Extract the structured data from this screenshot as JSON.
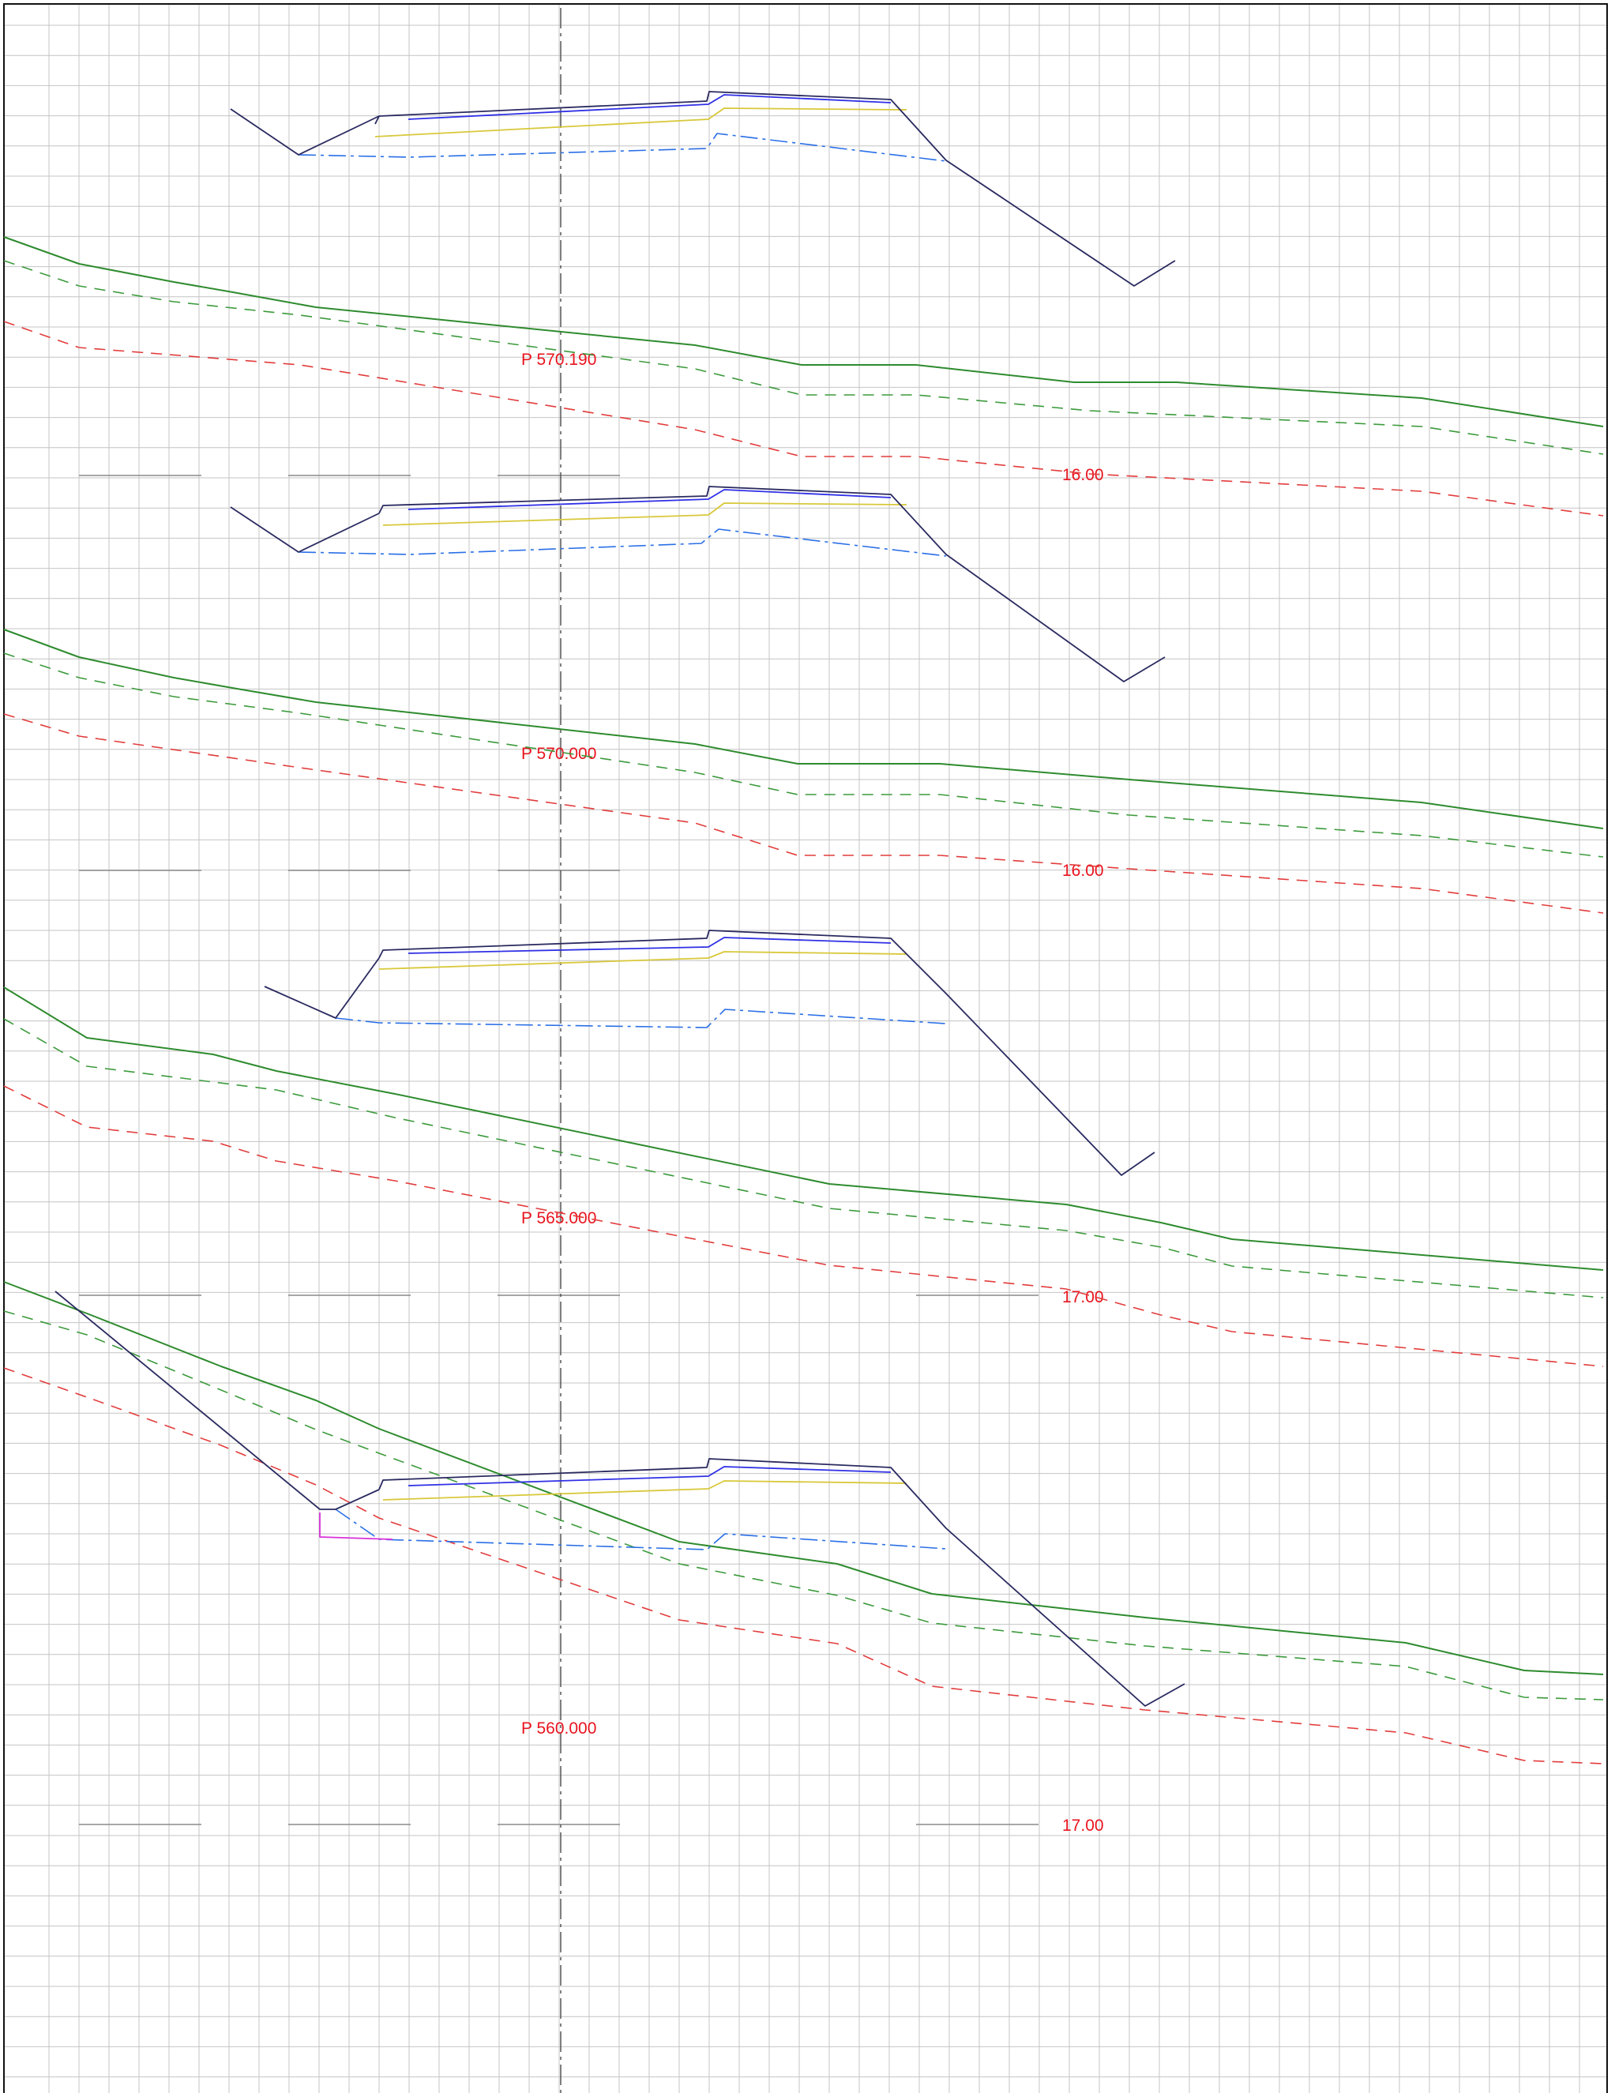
{
  "drawing": {
    "title": "",
    "sections": [
      {
        "station_label": "P 570.190",
        "width_label": "16.00",
        "design": {
          "top_layer": [
            [
              475,
              -445
            ],
            [
              480,
              -455
            ],
            [
              895,
              -474
            ],
            [
              898,
              -486
            ],
            [
              1128,
              -476
            ],
            [
              1198,
              -399
            ],
            [
              1436,
              -240
            ],
            [
              1488,
              -272
            ]
          ],
          "left_ditch": [
            [
              292,
              -464
            ],
            [
              378,
              -406
            ],
            [
              480,
              -455
            ]
          ],
          "blue_layer": [
            [
              517,
              -451
            ],
            [
              897,
              -470
            ],
            [
              917,
              -482
            ],
            [
              1128,
              -472
            ]
          ],
          "yellow_layer": [
            [
              475,
              -429
            ],
            [
              897,
              -451
            ],
            [
              917,
              -465
            ],
            [
              1148,
              -463
            ]
          ],
          "subgrade": [
            [
              378,
              -406
            ],
            [
              518,
              -403
            ],
            [
              895,
              -414
            ],
            [
              908,
              -433
            ],
            [
              1198,
              -398
            ]
          ]
        },
        "terrain": {
          "ground": [
            [
              5,
              -302
            ],
            [
              100,
              -268
            ],
            [
              220,
              -245
            ],
            [
              295,
              -232
            ],
            [
              400,
              -213
            ],
            [
              880,
              -165
            ],
            [
              1015,
              -140
            ],
            [
              1160,
              -140
            ],
            [
              1360,
              -118
            ],
            [
              1490,
              -118
            ],
            [
              1800,
              -98
            ],
            [
              2030,
              -62
            ]
          ],
          "layer_1": [
            [
              5,
              -272
            ],
            [
              100,
              -240
            ],
            [
              220,
              -220
            ],
            [
              380,
              -203
            ],
            [
              880,
              -135
            ],
            [
              1015,
              -102
            ],
            [
              1160,
              -102
            ],
            [
              1380,
              -82
            ],
            [
              1800,
              -62
            ],
            [
              2030,
              -27
            ]
          ],
          "layer_2": [
            [
              5,
              -195
            ],
            [
              100,
              -162
            ],
            [
              380,
              -140
            ],
            [
              880,
              -58
            ],
            [
              1015,
              -24
            ],
            [
              1160,
              -24
            ],
            [
              1380,
              -2
            ],
            [
              1800,
              20
            ],
            [
              2030,
              51
            ]
          ]
        }
      },
      {
        "station_label": "P 570.000",
        "width_label": "16.00",
        "design": {
          "top_layer": [
            [
              480,
              -452
            ],
            [
              485,
              -462
            ],
            [
              895,
              -474
            ],
            [
              898,
              -486
            ],
            [
              1128,
              -476
            ],
            [
              1198,
              -400
            ],
            [
              1423,
              -239
            ],
            [
              1475,
              -270
            ]
          ],
          "left_ditch": [
            [
              292,
              -460
            ],
            [
              378,
              -403
            ],
            [
              480,
              -452
            ]
          ],
          "blue_layer": [
            [
              517,
              -457
            ],
            [
              897,
              -470
            ],
            [
              917,
              -482
            ],
            [
              1128,
              -472
            ]
          ],
          "yellow_layer": [
            [
              485,
              -437
            ],
            [
              897,
              -450
            ],
            [
              917,
              -465
            ],
            [
              1148,
              -463
            ]
          ],
          "subgrade": [
            [
              378,
              -403
            ],
            [
              518,
              -400
            ],
            [
              888,
              -414
            ],
            [
              910,
              -432
            ],
            [
              1198,
              -398
            ]
          ]
        },
        "terrain": {
          "ground": [
            [
              5,
              -305
            ],
            [
              100,
              -270
            ],
            [
              220,
              -244
            ],
            [
              300,
              -230
            ],
            [
              400,
              -213
            ],
            [
              880,
              -160
            ],
            [
              1010,
              -135
            ],
            [
              1190,
              -135
            ],
            [
              1430,
              -115
            ],
            [
              1800,
              -86
            ],
            [
              2030,
              -53
            ]
          ],
          "layer_1": [
            [
              5,
              -275
            ],
            [
              100,
              -244
            ],
            [
              220,
              -220
            ],
            [
              380,
              -199
            ],
            [
              880,
              -124
            ],
            [
              1010,
              -96
            ],
            [
              1190,
              -96
            ],
            [
              1430,
              -70
            ],
            [
              1800,
              -44
            ],
            [
              2030,
              -17
            ]
          ],
          "layer_2": [
            [
              5,
              -198
            ],
            [
              100,
              -170
            ],
            [
              380,
              -130
            ],
            [
              880,
              -60
            ],
            [
              1010,
              -19
            ],
            [
              1190,
              -19
            ],
            [
              1430,
              -2
            ],
            [
              1800,
              23
            ],
            [
              2030,
              54
            ]
          ]
        }
      },
      {
        "station_label": "P 565.000",
        "width_label": "17.00",
        "design": {
          "top_layer": [
            [
              480,
              -427
            ],
            [
              485,
              -437
            ],
            [
              895,
              -452
            ],
            [
              898,
              -462
            ],
            [
              1128,
              -452
            ],
            [
              1198,
              -382
            ],
            [
              1420,
              -152
            ],
            [
              1462,
              -181
            ]
          ],
          "left_ditch": [
            [
              335,
              -391
            ],
            [
              425,
              -351
            ],
            [
              480,
              -427
            ]
          ],
          "blue_layer": [
            [
              517,
              -433
            ],
            [
              897,
              -441
            ],
            [
              917,
              -453
            ],
            [
              1128,
              -446
            ]
          ],
          "yellow_layer": [
            [
              480,
              -413
            ],
            [
              897,
              -427
            ],
            [
              917,
              -435
            ],
            [
              1148,
              -432
            ]
          ],
          "subgrade": [
            [
              425,
              -351
            ],
            [
              480,
              -345
            ],
            [
              895,
              -339
            ],
            [
              918,
              -362
            ],
            [
              1198,
              -344
            ]
          ]
        },
        "terrain": {
          "ground": [
            [
              5,
              -390
            ],
            [
              110,
              -326
            ],
            [
              270,
              -305
            ],
            [
              350,
              -284
            ],
            [
              500,
              -255
            ],
            [
              1050,
              -141
            ],
            [
              1350,
              -115
            ],
            [
              1470,
              -92
            ],
            [
              1560,
              -71
            ],
            [
              2030,
              -32
            ]
          ],
          "layer_1": [
            [
              5,
              -350
            ],
            [
              110,
              -290
            ],
            [
              270,
              -270
            ],
            [
              350,
              -260
            ],
            [
              500,
              -225
            ],
            [
              1050,
              -110
            ],
            [
              1350,
              -82
            ],
            [
              1470,
              -61
            ],
            [
              1560,
              -37
            ],
            [
              2030,
              3
            ]
          ],
          "layer_2": [
            [
              5,
              -265
            ],
            [
              110,
              -213
            ],
            [
              270,
              -195
            ],
            [
              350,
              -170
            ],
            [
              500,
              -145
            ],
            [
              1050,
              -38
            ],
            [
              1350,
              -8
            ],
            [
              1470,
              25
            ],
            [
              1560,
              46
            ],
            [
              2030,
              90
            ]
          ]
        }
      },
      {
        "station_label": "P 560.000",
        "width_label": "17.00",
        "design": {
          "top_layer": [
            [
              480,
              -424
            ],
            [
              485,
              -436
            ],
            [
              895,
              -452
            ],
            [
              898,
              -463
            ],
            [
              1128,
              -452
            ],
            [
              1198,
              -375
            ],
            [
              1450,
              -150
            ],
            [
              1500,
              -178
            ]
          ],
          "left_ditch": [
            [
              70,
              -675
            ],
            [
              405,
              -399
            ],
            [
              425,
              -399
            ],
            [
              480,
              -424
            ]
          ],
          "blue_layer": [
            [
              517,
              -429
            ],
            [
              897,
              -441
            ],
            [
              917,
              -453
            ],
            [
              1128,
              -446
            ]
          ],
          "yellow_layer": [
            [
              485,
              -411
            ],
            [
              897,
              -425
            ],
            [
              917,
              -435
            ],
            [
              1148,
              -432
            ]
          ],
          "subgrade": [
            [
              425,
              -399
            ],
            [
              480,
              -361
            ],
            [
              895,
              -348
            ],
            [
              918,
              -368
            ],
            [
              1198,
              -349
            ]
          ],
          "drain": [
            [
              405,
              -395
            ],
            [
              405,
              -364
            ],
            [
              497,
              -361
            ]
          ]
        },
        "terrain": {
          "ground": [
            [
              5,
              -687
            ],
            [
              110,
              -647
            ],
            [
              280,
              -580
            ],
            [
              400,
              -537
            ],
            [
              480,
              -501
            ],
            [
              860,
              -358
            ],
            [
              1060,
              -330
            ],
            [
              1180,
              -292
            ],
            [
              1450,
              -262
            ],
            [
              1780,
              -230
            ],
            [
              1930,
              -195
            ],
            [
              2030,
              -190
            ]
          ],
          "layer_1": [
            [
              5,
              -650
            ],
            [
              110,
              -620
            ],
            [
              280,
              -550
            ],
            [
              400,
              -500
            ],
            [
              480,
              -470
            ],
            [
              860,
              -330
            ],
            [
              1060,
              -290
            ],
            [
              1180,
              -255
            ],
            [
              1450,
              -226
            ],
            [
              1780,
              -200
            ],
            [
              1930,
              -161
            ],
            [
              2030,
              -158
            ]
          ],
          "layer_2": [
            [
              5,
              -578
            ],
            [
              110,
              -541
            ],
            [
              280,
              -480
            ],
            [
              400,
              -430
            ],
            [
              480,
              -388
            ],
            [
              860,
              -259
            ],
            [
              1060,
              -229
            ],
            [
              1180,
              -175
            ],
            [
              1450,
              -145
            ],
            [
              1780,
              -116
            ],
            [
              1930,
              -81
            ],
            [
              2030,
              -77
            ]
          ]
        }
      }
    ]
  },
  "style": {
    "design_line": "#2a2a60",
    "blue_layer": "#2f2fe6",
    "yellow_layer": "#d8c83a",
    "subgrade": "#2a6fe6",
    "ground": "#2e8b2e",
    "layer_1": "#3c9a3c",
    "layer_2": "#e23c3c",
    "drain": "#d832d8",
    "label": "#e8141e",
    "grid": "#c4c4c4",
    "axis": "#555555"
  }
}
